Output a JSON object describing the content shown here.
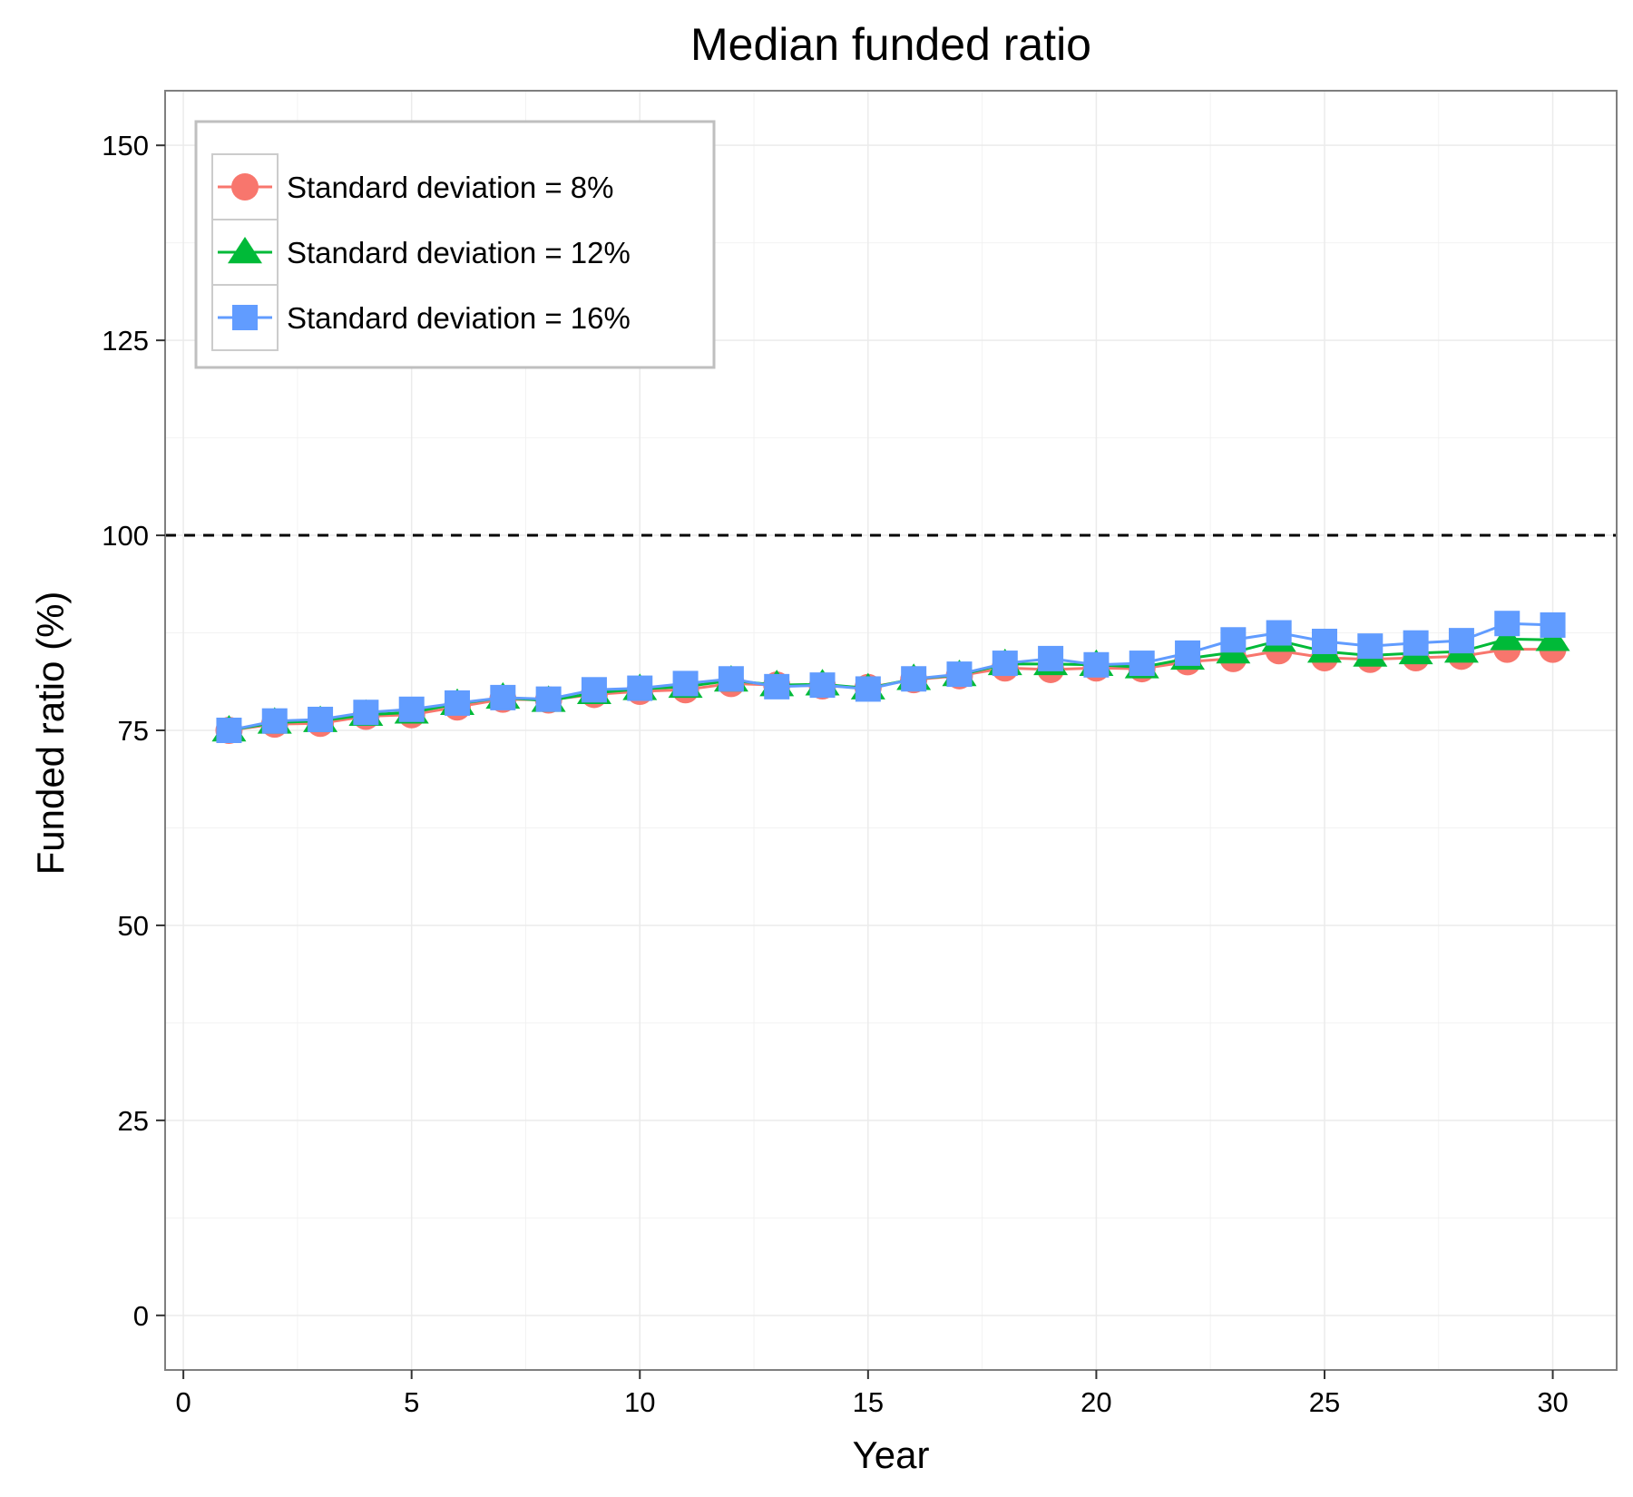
{
  "chart_data": {
    "type": "line",
    "title": "Median funded ratio",
    "xlabel": "Year",
    "ylabel": "Funded ratio (%)",
    "xlim": [
      -0.4,
      31.4
    ],
    "ylim": [
      -7,
      157
    ],
    "x_ticks": [
      0,
      5,
      10,
      15,
      20,
      25,
      30
    ],
    "y_ticks": [
      0,
      25,
      50,
      75,
      100,
      125,
      150
    ],
    "x_tick_labels": [
      "0",
      "5",
      "10",
      "15",
      "20",
      "25",
      "30"
    ],
    "y_tick_labels": [
      "0",
      "25",
      "50",
      "75",
      "100",
      "125",
      "150"
    ],
    "grid": true,
    "legend_position": "top-left",
    "reference_line": {
      "y": 100,
      "style": "dashed",
      "color": "#000000"
    },
    "x": [
      1,
      2,
      3,
      4,
      5,
      6,
      7,
      8,
      9,
      10,
      11,
      12,
      13,
      14,
      15,
      16,
      17,
      18,
      19,
      20,
      21,
      22,
      23,
      24,
      25,
      26,
      27,
      28,
      29,
      30
    ],
    "series": [
      {
        "name": "Standard deviation = 8%",
        "color": "#F8766D",
        "marker": "circle",
        "values": [
          75,
          75.8,
          75.9,
          76.8,
          77,
          78,
          79,
          78.9,
          79.6,
          80,
          80.2,
          81,
          80.8,
          80.7,
          80.5,
          81.5,
          82,
          83,
          82.8,
          83,
          82.9,
          83.8,
          84.2,
          85.2,
          84.3,
          84.1,
          84.3,
          84.5,
          85.4,
          85.4
        ]
      },
      {
        "name": "Standard deviation = 12%",
        "color": "#00BA38",
        "marker": "triangle",
        "values": [
          75,
          76,
          76.2,
          77,
          77.3,
          78.4,
          79.2,
          78.8,
          79.8,
          80.3,
          80.6,
          81.4,
          80.8,
          80.9,
          80.4,
          81.6,
          82.1,
          83.5,
          83.5,
          83.4,
          83.1,
          84.2,
          85,
          86.5,
          85.1,
          84.6,
          84.9,
          85.1,
          86.7,
          86.6
        ]
      },
      {
        "name": "Standard deviation = 16%",
        "color": "#619CFF",
        "marker": "square",
        "values": [
          75,
          76.2,
          76.4,
          77.3,
          77.7,
          78.5,
          79.2,
          79,
          80.2,
          80.4,
          81,
          81.6,
          80.6,
          80.8,
          80.3,
          81.6,
          82.2,
          83.6,
          84.2,
          83.4,
          83.6,
          84.9,
          86.6,
          87.5,
          86.4,
          85.8,
          86.2,
          86.5,
          88.7,
          88.5
        ]
      }
    ]
  }
}
